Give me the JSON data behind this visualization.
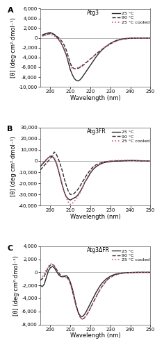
{
  "panels": [
    {
      "label": "A",
      "title": "Atg3",
      "ylim": [
        -10000,
        6000
      ],
      "yticks": [
        -10000,
        -8000,
        -6000,
        -4000,
        -2000,
        0,
        2000,
        4000,
        6000
      ],
      "curves": {
        "c25": {
          "x": [
            196,
            197,
            198,
            199,
            200,
            201,
            202,
            203,
            204,
            205,
            206,
            207,
            208,
            209,
            210,
            211,
            212,
            213,
            214,
            215,
            216,
            217,
            218,
            219,
            220,
            221,
            222,
            223,
            224,
            225,
            226,
            227,
            228,
            229,
            230,
            231,
            232,
            233,
            234,
            235,
            236,
            237,
            238,
            239,
            240,
            241,
            242,
            243,
            244,
            245,
            246,
            247,
            248,
            249,
            250
          ],
          "y": [
            600,
            800,
            900,
            1050,
            1100,
            950,
            700,
            300,
            -200,
            -800,
            -1500,
            -2500,
            -3500,
            -5000,
            -6500,
            -7500,
            -8300,
            -8700,
            -8800,
            -8500,
            -8000,
            -7400,
            -6800,
            -6200,
            -5600,
            -5000,
            -4400,
            -3800,
            -3300,
            -2800,
            -2400,
            -2000,
            -1700,
            -1400,
            -1100,
            -900,
            -700,
            -500,
            -400,
            -300,
            -200,
            -150,
            -100,
            -80,
            -60,
            -40,
            -30,
            -20,
            -10,
            -10,
            0,
            0,
            0,
            0,
            0
          ]
        },
        "c90": {
          "x": [
            196,
            197,
            198,
            199,
            200,
            201,
            202,
            203,
            204,
            205,
            206,
            207,
            208,
            209,
            210,
            211,
            212,
            213,
            214,
            215,
            216,
            217,
            218,
            219,
            220,
            221,
            222,
            223,
            224,
            225,
            226,
            227,
            228,
            229,
            230,
            231,
            232,
            233,
            234,
            235,
            236,
            237,
            238,
            239,
            240,
            241,
            242,
            243,
            244,
            245,
            246,
            247,
            248,
            249,
            250
          ],
          "y": [
            400,
            600,
            700,
            800,
            900,
            850,
            700,
            400,
            100,
            -300,
            -800,
            -1500,
            -2500,
            -3800,
            -5200,
            -6000,
            -6300,
            -6300,
            -6200,
            -6000,
            -5700,
            -5400,
            -5000,
            -4700,
            -4300,
            -4000,
            -3600,
            -3200,
            -2900,
            -2600,
            -2300,
            -2000,
            -1700,
            -1500,
            -1200,
            -1000,
            -800,
            -600,
            -450,
            -350,
            -250,
            -180,
            -130,
            -90,
            -60,
            -40,
            -30,
            -20,
            -10,
            -10,
            0,
            0,
            0,
            0,
            0
          ]
        },
        "c25c": {
          "x": [
            196,
            197,
            198,
            199,
            200,
            201,
            202,
            203,
            204,
            205,
            206,
            207,
            208,
            209,
            210,
            211,
            212,
            213,
            214,
            215,
            216,
            217,
            218,
            219,
            220,
            221,
            222,
            223,
            224,
            225,
            226,
            227,
            228,
            229,
            230,
            231,
            232,
            233,
            234,
            235,
            236,
            237,
            238,
            239,
            240,
            241,
            242,
            243,
            244,
            245,
            246,
            247,
            248,
            249,
            250
          ],
          "y": [
            400,
            500,
            600,
            700,
            700,
            600,
            400,
            100,
            -300,
            -800,
            -1400,
            -2200,
            -3300,
            -4600,
            -5800,
            -6200,
            -6300,
            -6200,
            -6000,
            -5800,
            -5500,
            -5200,
            -4900,
            -4600,
            -4300,
            -4000,
            -3600,
            -3300,
            -2900,
            -2600,
            -2200,
            -1900,
            -1700,
            -1400,
            -1200,
            -1000,
            -800,
            -650,
            -500,
            -400,
            -300,
            -220,
            -160,
            -110,
            -80,
            -55,
            -40,
            -30,
            -20,
            -10,
            -5,
            0,
            0,
            0,
            0
          ]
        }
      }
    },
    {
      "label": "B",
      "title": "Atg3FR",
      "ylim": [
        -40000,
        30000
      ],
      "yticks": [
        -40000,
        -30000,
        -20000,
        -10000,
        0,
        10000,
        20000,
        30000
      ],
      "curves": {
        "c25": {
          "x": [
            195,
            196,
            197,
            198,
            199,
            200,
            201,
            202,
            203,
            204,
            205,
            206,
            207,
            208,
            209,
            210,
            211,
            212,
            213,
            214,
            215,
            216,
            217,
            218,
            219,
            220,
            221,
            222,
            223,
            224,
            225,
            226,
            227,
            228,
            229,
            230,
            231,
            232,
            233,
            234,
            235,
            236,
            237,
            238,
            239,
            240,
            241,
            242,
            243,
            244,
            245,
            246,
            247,
            248,
            249,
            250
          ],
          "y": [
            -5000,
            -3000,
            -1000,
            1000,
            3000,
            4000,
            4000,
            2000,
            -2000,
            -8000,
            -15000,
            -22000,
            -28000,
            -32000,
            -34000,
            -35000,
            -34000,
            -33000,
            -32000,
            -30000,
            -27000,
            -24000,
            -20000,
            -17000,
            -14000,
            -11000,
            -8500,
            -6500,
            -5000,
            -3800,
            -2800,
            -2000,
            -1500,
            -1100,
            -800,
            -500,
            -300,
            -200,
            -100,
            -50,
            0,
            100,
            200,
            300,
            350,
            400,
            400,
            400,
            350,
            300,
            200,
            150,
            100,
            50,
            20,
            0
          ]
        },
        "c90": {
          "x": [
            195,
            196,
            197,
            198,
            199,
            200,
            201,
            202,
            203,
            204,
            205,
            206,
            207,
            208,
            209,
            210,
            211,
            212,
            213,
            214,
            215,
            216,
            217,
            218,
            219,
            220,
            221,
            222,
            223,
            224,
            225,
            226,
            227,
            228,
            229,
            230,
            231,
            232,
            233,
            234,
            235,
            236,
            237,
            238,
            239,
            240,
            241,
            242,
            243,
            244,
            245,
            246,
            247,
            248,
            249,
            250
          ],
          "y": [
            -8000,
            -6000,
            -4000,
            -2000,
            0,
            2000,
            5000,
            8000,
            6000,
            2000,
            -3000,
            -9000,
            -16000,
            -22000,
            -27000,
            -30000,
            -30000,
            -29000,
            -27000,
            -25000,
            -22000,
            -19000,
            -16000,
            -13000,
            -10500,
            -8000,
            -6000,
            -4500,
            -3300,
            -2500,
            -1800,
            -1300,
            -900,
            -600,
            -400,
            -200,
            -100,
            0,
            50,
            100,
            150,
            200,
            250,
            300,
            300,
            300,
            300,
            250,
            200,
            150,
            100,
            80,
            50,
            20,
            10,
            0
          ]
        },
        "c25c": {
          "x": [
            195,
            196,
            197,
            198,
            199,
            200,
            201,
            202,
            203,
            204,
            205,
            206,
            207,
            208,
            209,
            210,
            211,
            212,
            213,
            214,
            215,
            216,
            217,
            218,
            219,
            220,
            221,
            222,
            223,
            224,
            225,
            226,
            227,
            228,
            229,
            230,
            231,
            232,
            233,
            234,
            235,
            236,
            237,
            238,
            239,
            240,
            241,
            242,
            243,
            244,
            245,
            246,
            247,
            248,
            249,
            250
          ],
          "y": [
            -3000,
            -1500,
            0,
            1500,
            3000,
            4500,
            5000,
            3000,
            -1000,
            -7000,
            -14000,
            -21000,
            -28000,
            -33000,
            -37000,
            -39000,
            -38000,
            -36000,
            -34000,
            -31000,
            -28000,
            -24000,
            -20000,
            -16000,
            -13000,
            -10000,
            -7500,
            -5500,
            -4000,
            -2800,
            -2000,
            -1300,
            -800,
            -400,
            -100,
            100,
            300,
            400,
            500,
            550,
            600,
            650,
            700,
            700,
            700,
            700,
            650,
            600,
            500,
            400,
            350,
            300,
            200,
            100,
            50,
            0
          ]
        }
      }
    },
    {
      "label": "C",
      "title": "Atg3ΔFR",
      "ylim": [
        -8000,
        4000
      ],
      "yticks": [
        -8000,
        -6000,
        -4000,
        -2000,
        0,
        2000,
        4000
      ],
      "curves": {
        "c25": {
          "x": [
            195,
            196,
            197,
            198,
            199,
            200,
            201,
            202,
            203,
            204,
            205,
            206,
            207,
            208,
            209,
            210,
            211,
            212,
            213,
            214,
            215,
            216,
            217,
            218,
            219,
            220,
            221,
            222,
            223,
            224,
            225,
            226,
            227,
            228,
            229,
            230,
            231,
            232,
            233,
            234,
            235,
            236,
            237,
            238,
            239,
            240,
            241,
            242,
            243,
            244,
            245,
            246,
            247,
            248,
            249,
            250
          ],
          "y": [
            -2000,
            -2200,
            -1800,
            -800,
            200,
            700,
            900,
            700,
            200,
            -300,
            -600,
            -700,
            -600,
            -500,
            -800,
            -1500,
            -2500,
            -3800,
            -5200,
            -6200,
            -6700,
            -6800,
            -6500,
            -6000,
            -5400,
            -4800,
            -4200,
            -3600,
            -3000,
            -2500,
            -2000,
            -1600,
            -1300,
            -1000,
            -800,
            -600,
            -450,
            -350,
            -250,
            -200,
            -150,
            -110,
            -80,
            -60,
            -40,
            -30,
            -20,
            -15,
            -10,
            -5,
            0,
            0,
            0,
            0,
            0,
            0
          ]
        },
        "c90": {
          "x": [
            195,
            196,
            197,
            198,
            199,
            200,
            201,
            202,
            203,
            204,
            205,
            206,
            207,
            208,
            209,
            210,
            211,
            212,
            213,
            214,
            215,
            216,
            217,
            218,
            219,
            220,
            221,
            222,
            223,
            224,
            225,
            226,
            227,
            228,
            229,
            230,
            231,
            232,
            233,
            234,
            235,
            236,
            237,
            238,
            239,
            240,
            241,
            242,
            243,
            244,
            245,
            246,
            247,
            248,
            249,
            250
          ],
          "y": [
            -1200,
            -1000,
            -600,
            100,
            700,
            1100,
            1200,
            1000,
            500,
            0,
            -400,
            -600,
            -600,
            -700,
            -1000,
            -1700,
            -2800,
            -4000,
            -5200,
            -6200,
            -6900,
            -7200,
            -7000,
            -6600,
            -6100,
            -5500,
            -4900,
            -4300,
            -3700,
            -3100,
            -2600,
            -2100,
            -1700,
            -1300,
            -1000,
            -800,
            -600,
            -450,
            -350,
            -260,
            -190,
            -140,
            -100,
            -70,
            -50,
            -35,
            -25,
            -15,
            -10,
            -5,
            0,
            0,
            0,
            0,
            0,
            0
          ]
        },
        "c25c": {
          "x": [
            195,
            196,
            197,
            198,
            199,
            200,
            201,
            202,
            203,
            204,
            205,
            206,
            207,
            208,
            209,
            210,
            211,
            212,
            213,
            214,
            215,
            216,
            217,
            218,
            219,
            220,
            221,
            222,
            223,
            224,
            225,
            226,
            227,
            228,
            229,
            230,
            231,
            232,
            233,
            234,
            235,
            236,
            237,
            238,
            239,
            240,
            241,
            242,
            243,
            244,
            245,
            246,
            247,
            248,
            249,
            250
          ],
          "y": [
            -1000,
            -700,
            -200,
            400,
            900,
            1300,
            1300,
            1000,
            400,
            -100,
            -500,
            -700,
            -700,
            -800,
            -1100,
            -1800,
            -2900,
            -4200,
            -5400,
            -6400,
            -6900,
            -7200,
            -7000,
            -6600,
            -6100,
            -5500,
            -4900,
            -4300,
            -3700,
            -3100,
            -2600,
            -2100,
            -1700,
            -1300,
            -1000,
            -800,
            -600,
            -450,
            -350,
            -260,
            -190,
            -140,
            -100,
            -70,
            -50,
            -35,
            -25,
            -15,
            -10,
            -5,
            0,
            0,
            0,
            0,
            0,
            0
          ]
        }
      }
    }
  ],
  "colors": {
    "c25": "#2a2a2a",
    "c90": "#2a2a2a",
    "c25c": "#d45f7a"
  },
  "linestyles": {
    "c25": "-",
    "c90": "--",
    "c25c": ":"
  },
  "linewidths": {
    "c25": 1.0,
    "c90": 1.0,
    "c25c": 1.2
  },
  "legend_labels": {
    "c25": "25 °C",
    "c90": "90 °C",
    "c25c": "25 °C cooled"
  },
  "xlabel": "Wavelength (nm)",
  "ylabel": "[θ] (deg·cm²·dmol⁻¹)",
  "xlim": [
    195,
    250
  ],
  "xticks": [
    200,
    210,
    220,
    230,
    240,
    250
  ],
  "figure_facecolor": "#ffffff",
  "axes_facecolor": "#ffffff",
  "zero_line_color": "#aaaaaa",
  "label_fontsize": 6,
  "tick_fontsize": 5,
  "legend_fontsize": 4.5,
  "title_fontsize": 5.5,
  "panel_label_fontsize": 8
}
